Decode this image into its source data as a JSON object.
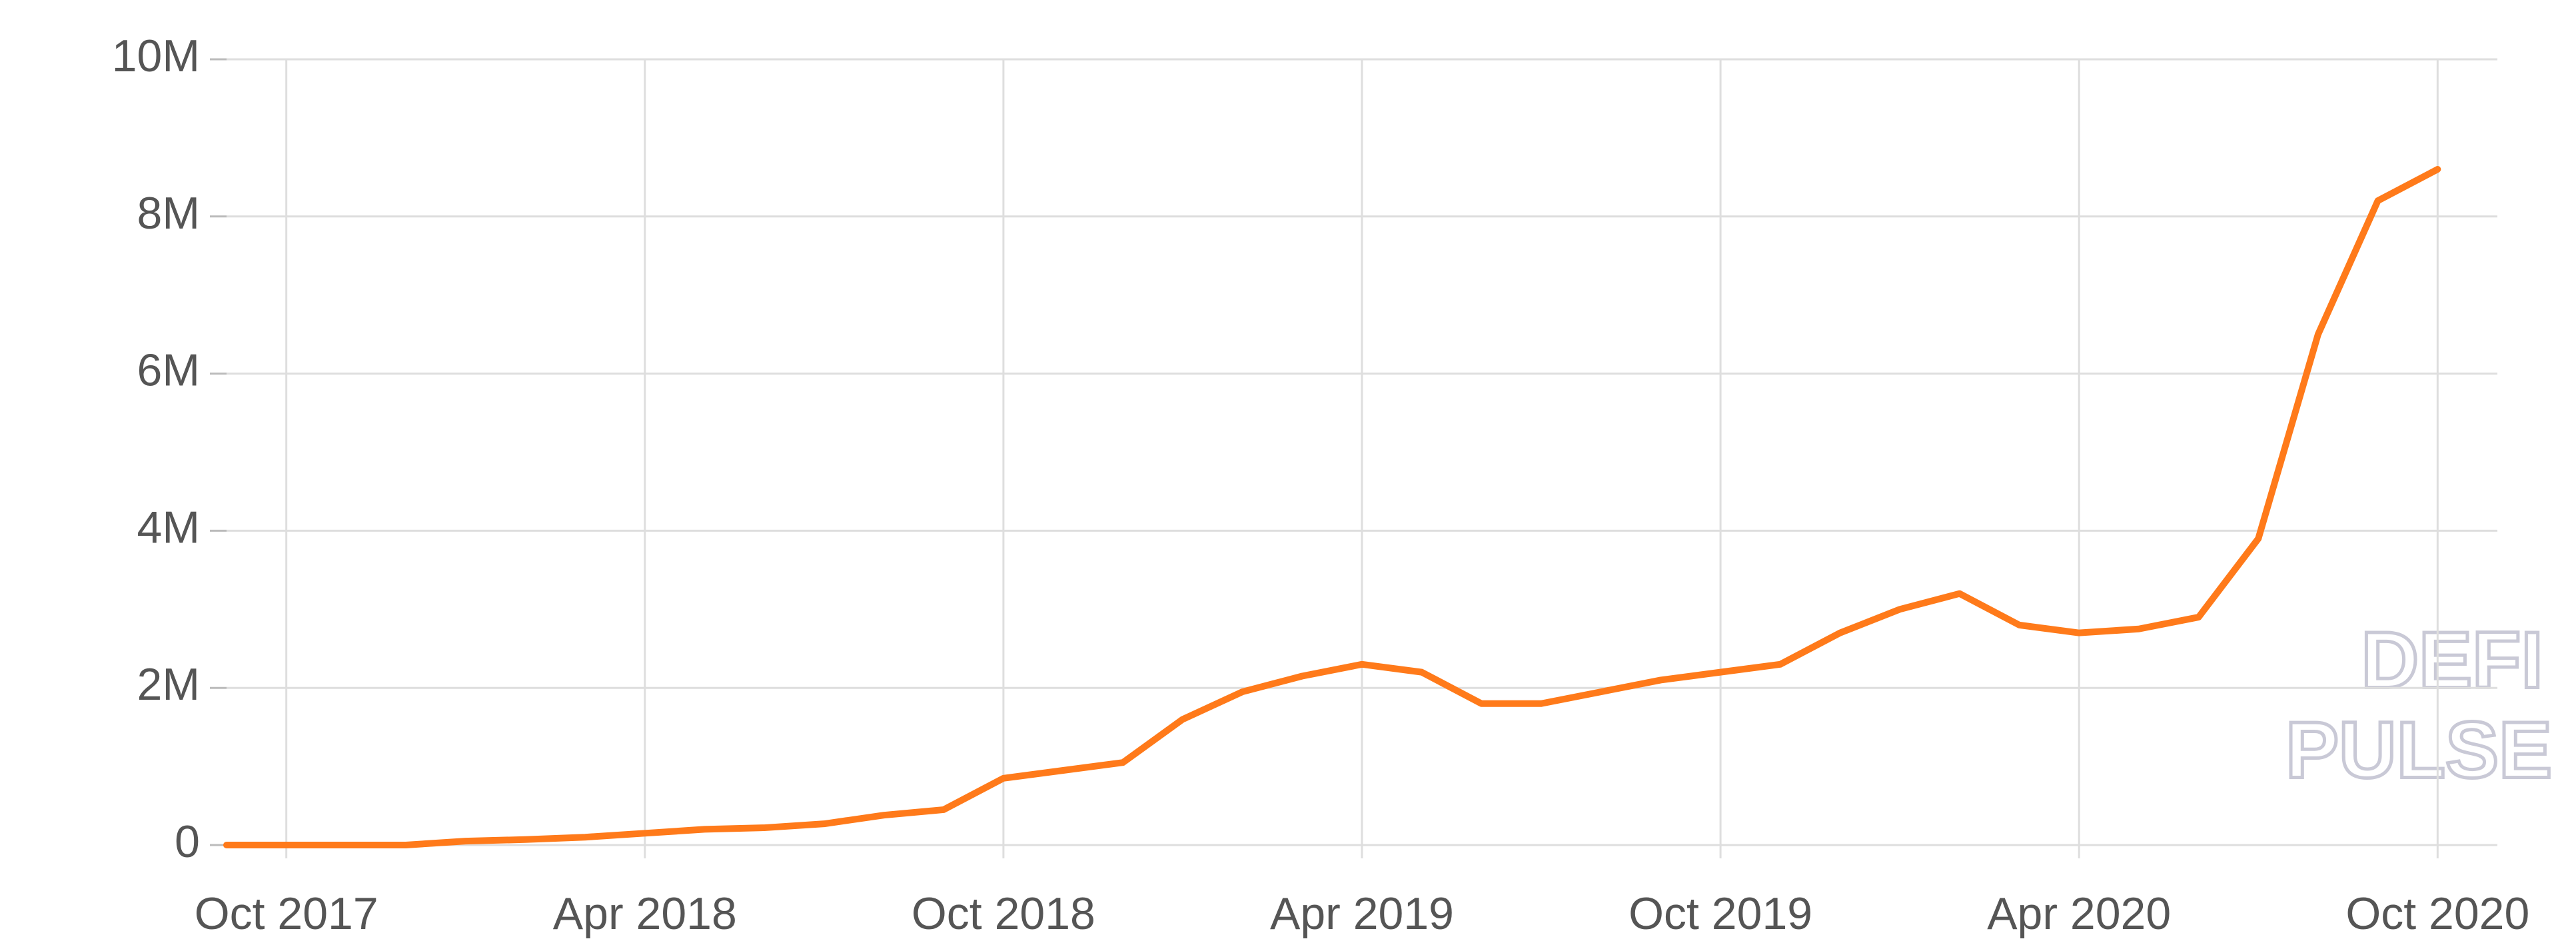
{
  "chart_data": {
    "type": "line",
    "watermark": [
      "DEFI",
      "PULSE"
    ],
    "x": [
      "2017-09",
      "2017-10",
      "2017-11",
      "2017-12",
      "2018-01",
      "2018-02",
      "2018-03",
      "2018-04",
      "2018-05",
      "2018-06",
      "2018-07",
      "2018-08",
      "2018-09",
      "2018-10",
      "2018-11",
      "2018-12",
      "2019-01",
      "2019-02",
      "2019-03",
      "2019-04",
      "2019-05",
      "2019-06",
      "2019-07",
      "2019-08",
      "2019-09",
      "2019-10",
      "2019-11",
      "2019-12",
      "2020-01",
      "2020-02",
      "2020-03",
      "2020-04",
      "2020-05",
      "2020-06",
      "2020-07",
      "2020-08",
      "2020-09",
      "2020-10"
    ],
    "series": [
      {
        "color": "#ff7a1a",
        "values": [
          0,
          0,
          0,
          0,
          50000,
          70000,
          100000,
          150000,
          200000,
          220000,
          270000,
          380000,
          450000,
          850000,
          950000,
          1050000,
          1600000,
          1950000,
          2150000,
          2300000,
          2200000,
          1800000,
          1800000,
          1950000,
          2100000,
          2200000,
          2300000,
          2700000,
          3000000,
          3200000,
          2800000,
          2700000,
          2750000,
          2900000,
          3900000,
          6500000,
          8200000,
          8600000
        ]
      }
    ],
    "xlim": [
      "2017-09",
      "2020-11"
    ],
    "xticks": [
      {
        "value": "2017-10",
        "label": "Oct 2017"
      },
      {
        "value": "2018-04",
        "label": "Apr 2018"
      },
      {
        "value": "2018-10",
        "label": "Oct 2018"
      },
      {
        "value": "2019-04",
        "label": "Apr 2019"
      },
      {
        "value": "2019-10",
        "label": "Oct 2019"
      },
      {
        "value": "2020-04",
        "label": "Apr 2020"
      },
      {
        "value": "2020-10",
        "label": "Oct 2020"
      }
    ],
    "ylim": [
      0,
      10000000
    ],
    "yticks": [
      0,
      {
        "value": 2000000,
        "label": "2M"
      },
      {
        "value": 4000000,
        "label": "4M"
      },
      {
        "value": 6000000,
        "label": "6M"
      },
      {
        "value": 8000000,
        "label": "8M"
      },
      {
        "value": 10000000,
        "label": "10M"
      }
    ],
    "grid": true
  }
}
